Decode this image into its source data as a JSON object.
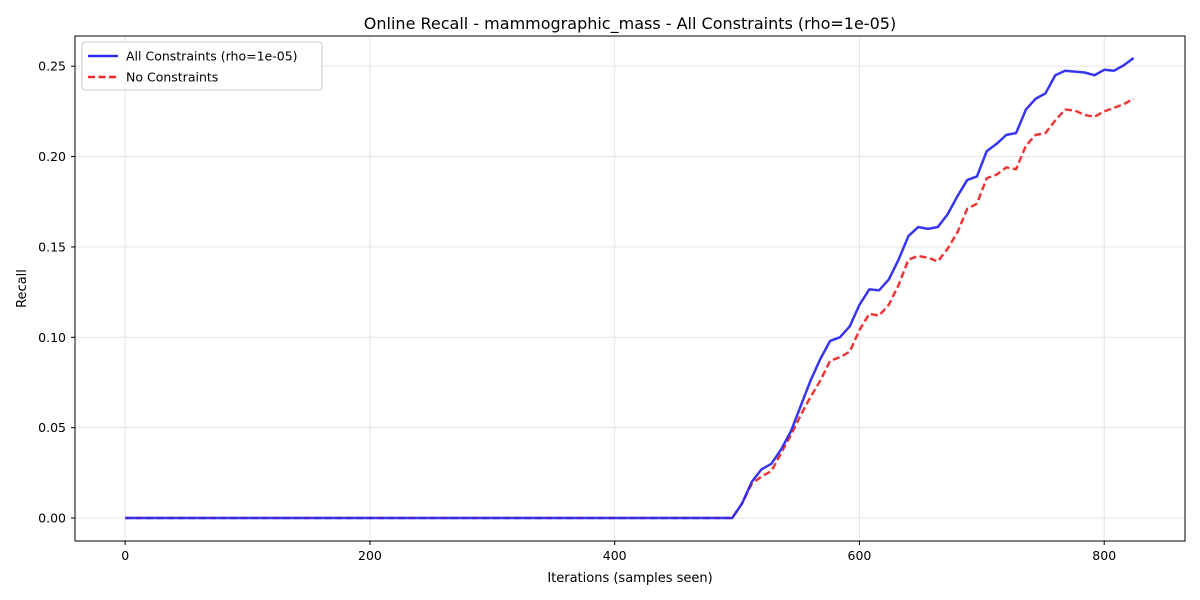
{
  "chart_data": {
    "type": "line",
    "title": "Online Recall - mammographic_mass - All Constraints (rho=1e-05)",
    "xlabel": "Iterations (samples seen)",
    "ylabel": "Recall",
    "xlim": [
      -41,
      866
    ],
    "ylim": [
      -0.0127,
      0.2667
    ],
    "xticks": [
      0,
      200,
      400,
      600,
      800
    ],
    "xtick_labels": [
      "0",
      "200",
      "400",
      "600",
      "800"
    ],
    "yticks": [
      0.0,
      0.05,
      0.1,
      0.15,
      0.2,
      0.25
    ],
    "ytick_labels": [
      "0.00",
      "0.05",
      "0.10",
      "0.15",
      "0.20",
      "0.25"
    ],
    "grid": true,
    "legend_position": "top-left",
    "series": [
      {
        "name": "All Constraints (rho=1e-05)",
        "color": "#2b2bef",
        "style": "solid",
        "points": [
          [
            0,
            0.0
          ],
          [
            100,
            0.0
          ],
          [
            200,
            0.0
          ],
          [
            300,
            0.0
          ],
          [
            400,
            0.0
          ],
          [
            496,
            0.0
          ],
          [
            504,
            0.008
          ],
          [
            512,
            0.02
          ],
          [
            520,
            0.027
          ],
          [
            528,
            0.03
          ],
          [
            536,
            0.038
          ],
          [
            544,
            0.048
          ],
          [
            552,
            0.062
          ],
          [
            560,
            0.076
          ],
          [
            568,
            0.088
          ],
          [
            576,
            0.098
          ],
          [
            584,
            0.1
          ],
          [
            592,
            0.106
          ],
          [
            600,
            0.118
          ],
          [
            608,
            0.1265
          ],
          [
            616,
            0.126
          ],
          [
            624,
            0.132
          ],
          [
            632,
            0.143
          ],
          [
            640,
            0.156
          ],
          [
            648,
            0.161
          ],
          [
            656,
            0.16
          ],
          [
            664,
            0.161
          ],
          [
            672,
            0.168
          ],
          [
            680,
            0.178
          ],
          [
            688,
            0.187
          ],
          [
            696,
            0.189
          ],
          [
            704,
            0.203
          ],
          [
            712,
            0.207
          ],
          [
            720,
            0.212
          ],
          [
            728,
            0.213
          ],
          [
            736,
            0.226
          ],
          [
            744,
            0.232
          ],
          [
            752,
            0.235
          ],
          [
            760,
            0.245
          ],
          [
            768,
            0.2475
          ],
          [
            776,
            0.247
          ],
          [
            784,
            0.2465
          ],
          [
            792,
            0.245
          ],
          [
            800,
            0.248
          ],
          [
            808,
            0.2475
          ],
          [
            816,
            0.2505
          ],
          [
            824,
            0.2545
          ]
        ]
      },
      {
        "name": "No Constraints",
        "color": "#ef2b2b",
        "style": "dashed",
        "points": [
          [
            0,
            0.0
          ],
          [
            100,
            0.0
          ],
          [
            200,
            0.0
          ],
          [
            300,
            0.0
          ],
          [
            400,
            0.0
          ],
          [
            496,
            0.0
          ],
          [
            504,
            0.008
          ],
          [
            512,
            0.019
          ],
          [
            520,
            0.023
          ],
          [
            528,
            0.026
          ],
          [
            536,
            0.036
          ],
          [
            544,
            0.046
          ],
          [
            552,
            0.057
          ],
          [
            560,
            0.067
          ],
          [
            568,
            0.076
          ],
          [
            576,
            0.087
          ],
          [
            584,
            0.089
          ],
          [
            592,
            0.092
          ],
          [
            600,
            0.104
          ],
          [
            608,
            0.113
          ],
          [
            616,
            0.112
          ],
          [
            624,
            0.118
          ],
          [
            632,
            0.129
          ],
          [
            640,
            0.143
          ],
          [
            648,
            0.145
          ],
          [
            656,
            0.144
          ],
          [
            664,
            0.142
          ],
          [
            672,
            0.149
          ],
          [
            680,
            0.158
          ],
          [
            688,
            0.171
          ],
          [
            696,
            0.174
          ],
          [
            704,
            0.188
          ],
          [
            712,
            0.19
          ],
          [
            720,
            0.194
          ],
          [
            728,
            0.193
          ],
          [
            736,
            0.206
          ],
          [
            744,
            0.212
          ],
          [
            752,
            0.213
          ],
          [
            760,
            0.22
          ],
          [
            768,
            0.226
          ],
          [
            776,
            0.2255
          ],
          [
            784,
            0.223
          ],
          [
            792,
            0.222
          ],
          [
            800,
            0.225
          ],
          [
            808,
            0.227
          ],
          [
            816,
            0.229
          ],
          [
            824,
            0.232
          ]
        ]
      }
    ]
  }
}
